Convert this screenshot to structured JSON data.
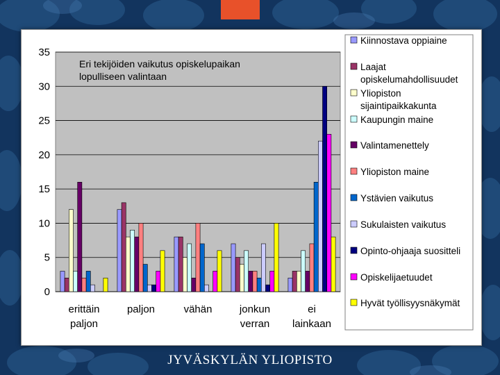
{
  "page": {
    "brand": "JYVÄSKYLÄN YLIOPISTO",
    "colors": {
      "background": "#12345e",
      "accent": "#e8512a",
      "plot_area": "#c0c0c0"
    }
  },
  "chart_data": {
    "type": "bar",
    "title": [
      "Eri tekijöiden vaikutus opiskelupaikan",
      "lopulliseen valintaan"
    ],
    "categories": [
      [
        "erittäin",
        "paljon"
      ],
      [
        "paljon"
      ],
      [
        "vähän"
      ],
      [
        "jonkun",
        "verran"
      ],
      [
        "ei",
        "lainkaan"
      ]
    ],
    "ylim": [
      0,
      35
    ],
    "yticks": [
      0,
      5,
      10,
      15,
      20,
      25,
      30,
      35
    ],
    "grid": true,
    "legend_position": "right",
    "series": [
      {
        "name": [
          "Kiinnostava oppiaine"
        ],
        "color": "#9999ff",
        "values": [
          3,
          12,
          8,
          7,
          2
        ]
      },
      {
        "name": [
          "Laajat",
          "opiskelumahdollisuudet"
        ],
        "color": "#993366",
        "values": [
          2,
          13,
          8,
          5,
          3
        ]
      },
      {
        "name": [
          "Yliopiston",
          "sijaintipaikkakunta"
        ],
        "color": "#ffffcc",
        "values": [
          12,
          8,
          5,
          4,
          3
        ]
      },
      {
        "name": [
          "Kaupungin maine"
        ],
        "color": "#ccffff",
        "values": [
          3,
          9,
          7,
          6,
          6
        ]
      },
      {
        "name": [
          "Valintamenettely"
        ],
        "color": "#660066",
        "values": [
          16,
          8,
          2,
          3,
          3
        ]
      },
      {
        "name": [
          "Yliopiston maine"
        ],
        "color": "#ff8080",
        "values": [
          2,
          10,
          10,
          3,
          7
        ]
      },
      {
        "name": [
          "Ystävien vaikutus"
        ],
        "color": "#0066cc",
        "values": [
          3,
          4,
          7,
          2,
          16
        ]
      },
      {
        "name": [
          "Sukulaisten vaikutus"
        ],
        "color": "#ccccff",
        "values": [
          1,
          1,
          1,
          7,
          22
        ]
      },
      {
        "name": [
          "Opinto-ohjaaja suositteli"
        ],
        "color": "#000080",
        "values": [
          0,
          1,
          0,
          1,
          30
        ]
      },
      {
        "name": [
          "Opiskelijaetuudet"
        ],
        "color": "#ff00ff",
        "values": [
          0,
          3,
          3,
          3,
          23
        ]
      },
      {
        "name": [
          "Hyvät työllisyysnäkymät"
        ],
        "color": "#ffff00",
        "values": [
          2,
          6,
          6,
          10,
          8
        ]
      }
    ]
  }
}
